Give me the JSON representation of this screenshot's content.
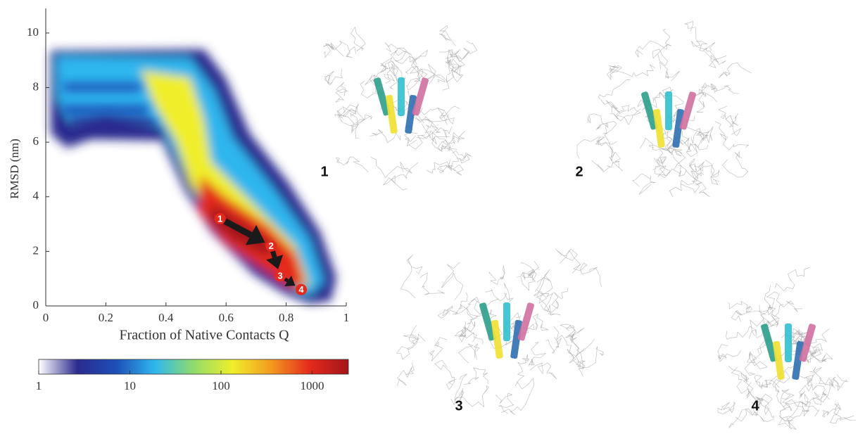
{
  "chart_data": {
    "type": "heatmap",
    "xlabel": "Fraction of Native Contacts Q",
    "ylabel": "RMSD (nm)",
    "xlim": [
      0,
      1
    ],
    "xticks": [
      0,
      0.2,
      0.4,
      0.6,
      0.8,
      1
    ],
    "ylim": [
      0,
      10.9
    ],
    "yticks": [
      0,
      2,
      4,
      6,
      8,
      10
    ],
    "colormap": [
      "#ffffff",
      "#2b2b8f",
      "#1d4fb8",
      "#2fb6ee",
      "#8fdc6a",
      "#f0ee2c",
      "#f39a1e",
      "#e42a1c",
      "#a3161a"
    ],
    "colorbar": {
      "scale": "log",
      "lim": [
        1,
        2500
      ],
      "ticks": [
        1,
        10,
        100,
        1000
      ]
    },
    "states": {
      "labels": [
        "1",
        "2",
        "3",
        "4"
      ],
      "x": [
        0.58,
        0.75,
        0.78,
        0.85
      ],
      "y": [
        3.2,
        2.2,
        1.1,
        0.6
      ]
    }
  },
  "panels": [
    {
      "label": "1"
    },
    {
      "label": "2"
    },
    {
      "label": "3"
    },
    {
      "label": "4"
    }
  ]
}
